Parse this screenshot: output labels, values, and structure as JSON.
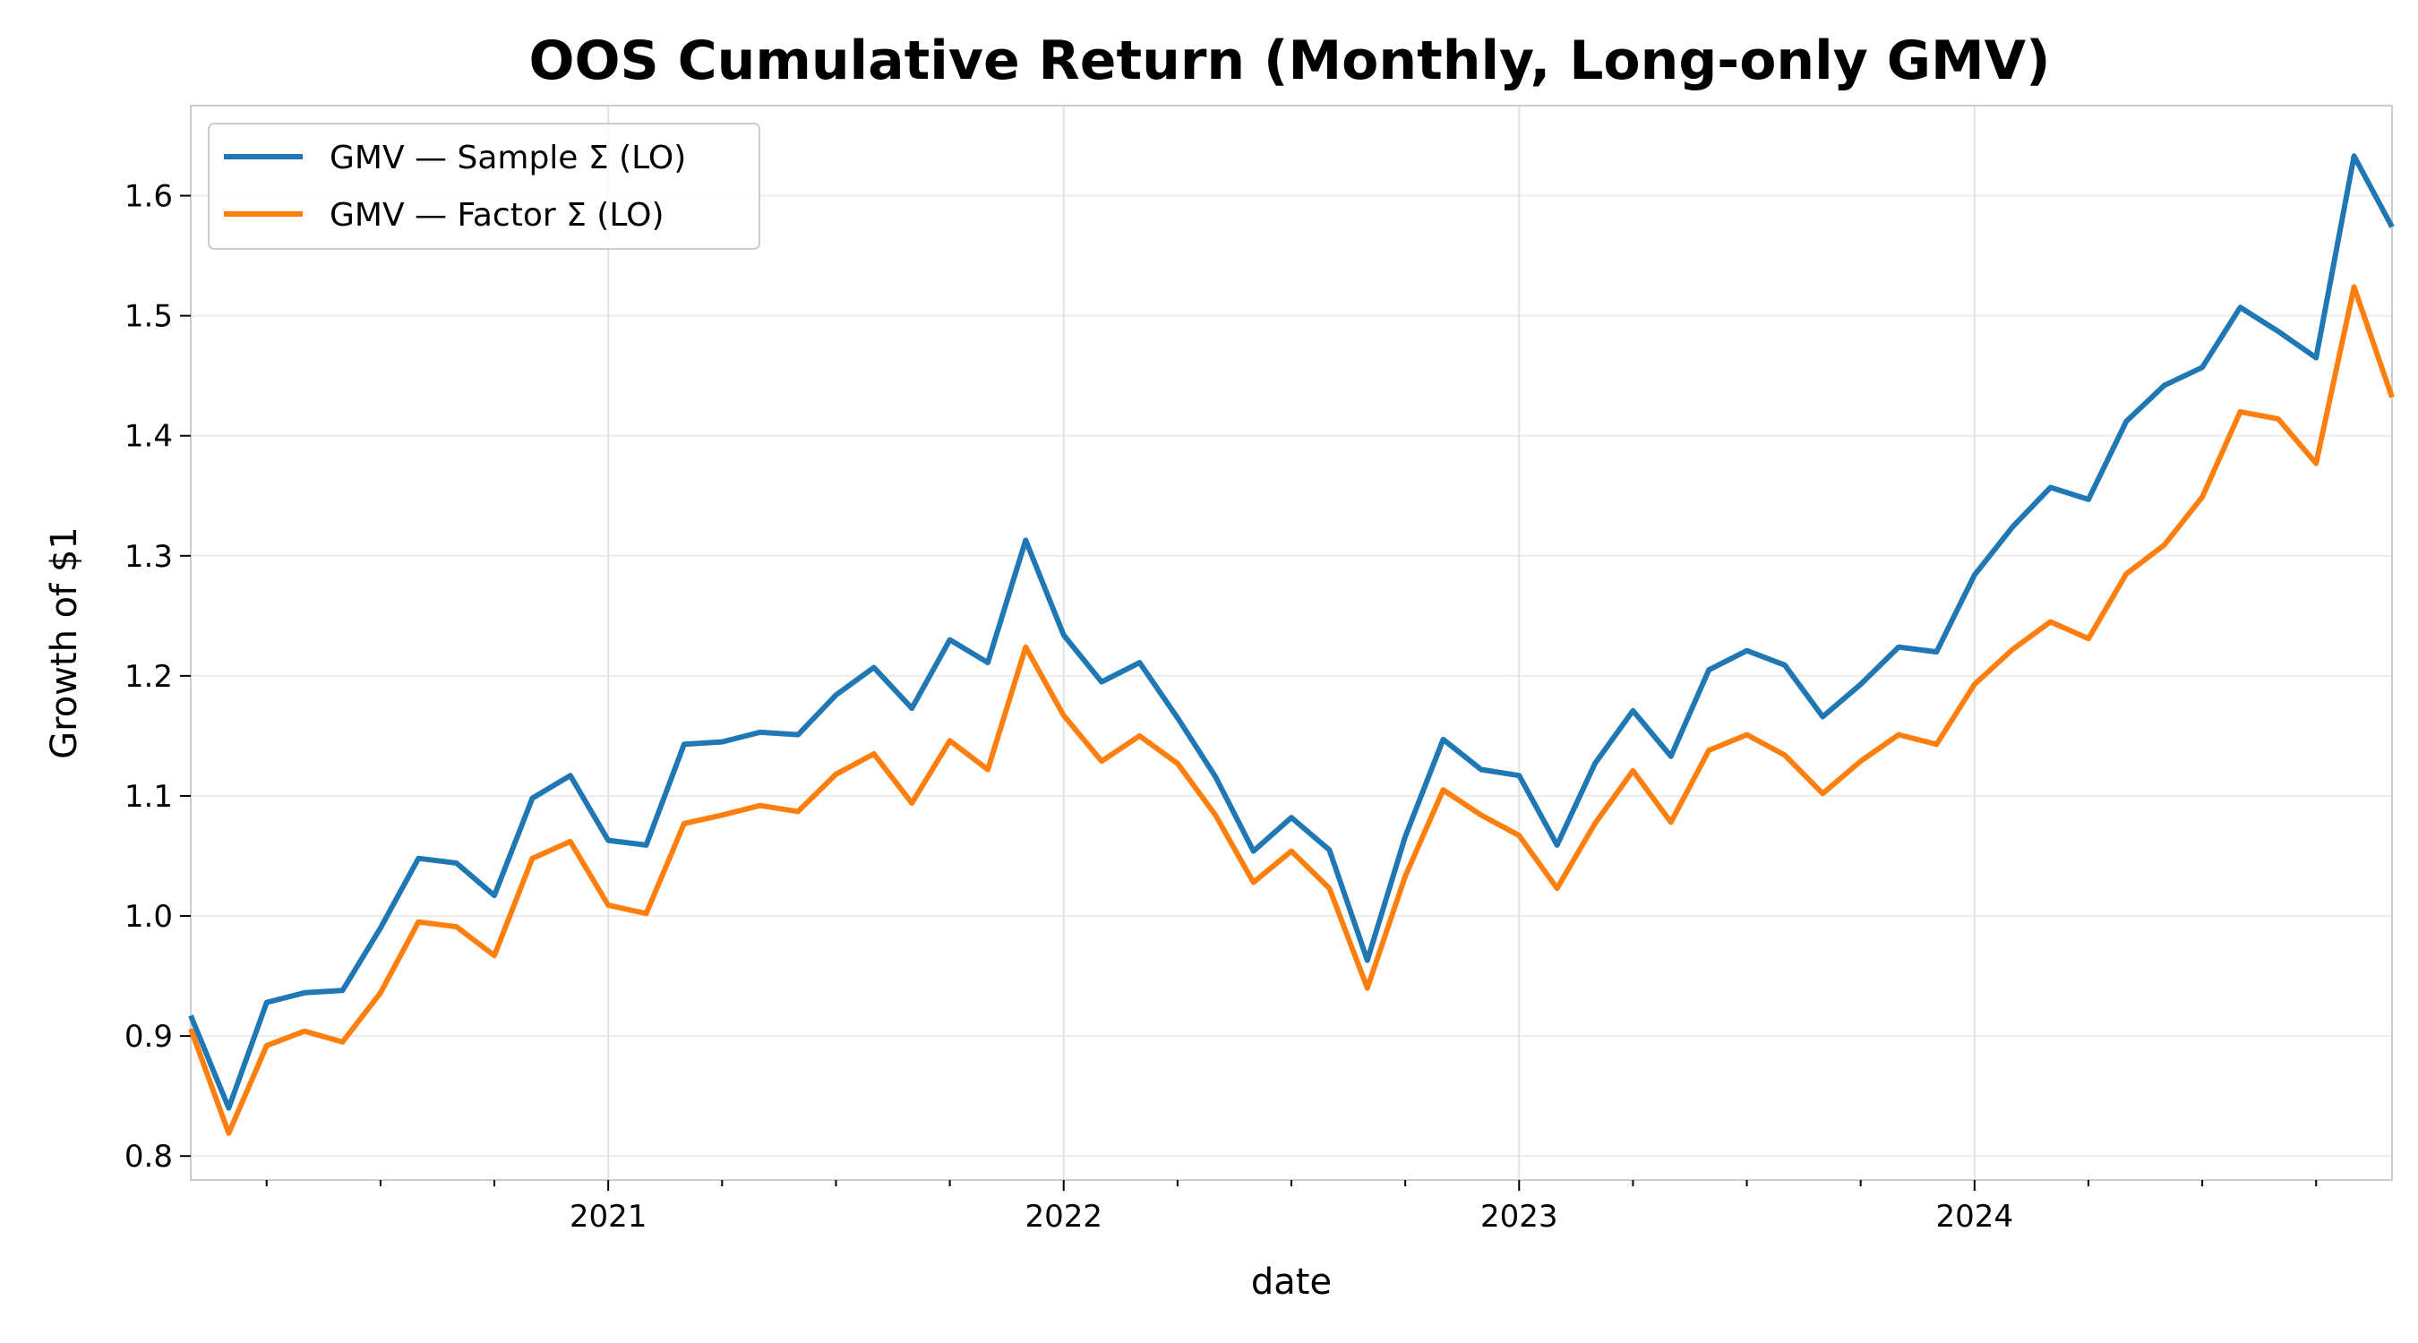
{
  "chart_data": {
    "type": "line",
    "title": "OOS Cumulative Return (Monthly, Long-only GMV)",
    "xlabel": "date",
    "ylabel": "Growth of $1",
    "x": [
      "2020-02",
      "2020-03",
      "2020-04",
      "2020-05",
      "2020-06",
      "2020-07",
      "2020-08",
      "2020-09",
      "2020-10",
      "2020-11",
      "2020-12",
      "2021-01",
      "2021-02",
      "2021-03",
      "2021-04",
      "2021-05",
      "2021-06",
      "2021-07",
      "2021-08",
      "2021-09",
      "2021-10",
      "2021-11",
      "2021-12",
      "2022-01",
      "2022-02",
      "2022-03",
      "2022-04",
      "2022-05",
      "2022-06",
      "2022-07",
      "2022-08",
      "2022-09",
      "2022-10",
      "2022-11",
      "2022-12",
      "2023-01",
      "2023-02",
      "2023-03",
      "2023-04",
      "2023-05",
      "2023-06",
      "2023-07",
      "2023-08",
      "2023-09",
      "2023-10",
      "2023-11",
      "2023-12",
      "2024-01",
      "2024-02",
      "2024-03",
      "2024-04",
      "2024-05",
      "2024-06",
      "2024-07",
      "2024-08",
      "2024-09",
      "2024-10",
      "2024-11",
      "2024-12"
    ],
    "x_tick_labels": [
      "2021",
      "2022",
      "2023",
      "2024"
    ],
    "y_ticks": [
      0.8,
      0.9,
      1.0,
      1.1,
      1.2,
      1.3,
      1.4,
      1.5,
      1.6
    ],
    "ylim": [
      0.78,
      1.675
    ],
    "grid": true,
    "legend_position": "top-left",
    "series": [
      {
        "name": "GMV — Sample Σ (LO)",
        "color": "#1f77b4",
        "values": [
          0.917,
          0.84,
          0.928,
          0.936,
          0.938,
          0.99,
          1.048,
          1.044,
          1.017,
          1.098,
          1.117,
          1.063,
          1.059,
          1.143,
          1.145,
          1.153,
          1.151,
          1.184,
          1.207,
          1.173,
          1.23,
          1.211,
          1.313,
          1.234,
          1.195,
          1.211,
          1.165,
          1.116,
          1.054,
          1.082,
          1.055,
          0.963,
          1.066,
          1.147,
          1.122,
          1.117,
          1.059,
          1.127,
          1.171,
          1.133,
          1.205,
          1.221,
          1.209,
          1.166,
          1.193,
          1.224,
          1.22,
          1.284,
          1.324,
          1.357,
          1.347,
          1.412,
          1.442,
          1.457,
          1.507,
          1.487,
          1.465,
          1.633,
          1.574
        ]
      },
      {
        "name": "GMV — Factor Σ (LO)",
        "color": "#ff7f0e",
        "values": [
          0.906,
          0.819,
          0.892,
          0.904,
          0.895,
          0.936,
          0.995,
          0.991,
          0.967,
          1.048,
          1.062,
          1.009,
          1.002,
          1.077,
          1.084,
          1.092,
          1.087,
          1.118,
          1.135,
          1.094,
          1.146,
          1.122,
          1.224,
          1.167,
          1.129,
          1.15,
          1.127,
          1.084,
          1.028,
          1.054,
          1.023,
          0.94,
          1.033,
          1.105,
          1.084,
          1.067,
          1.023,
          1.077,
          1.121,
          1.078,
          1.138,
          1.151,
          1.134,
          1.102,
          1.129,
          1.151,
          1.143,
          1.193,
          1.222,
          1.245,
          1.231,
          1.285,
          1.309,
          1.349,
          1.42,
          1.414,
          1.377,
          1.524,
          1.432
        ]
      }
    ]
  }
}
